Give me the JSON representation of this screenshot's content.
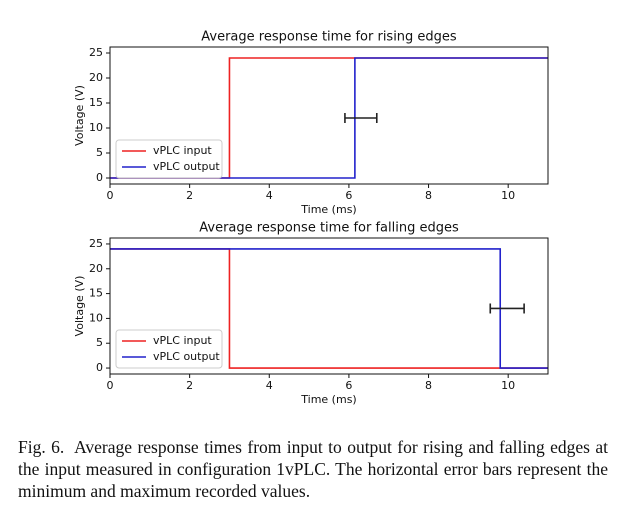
{
  "chart_data": [
    {
      "type": "line",
      "title": "Average response time for rising edges",
      "xlabel": "Time (ms)",
      "ylabel": "Voltage (V)",
      "xlim": [
        0,
        11
      ],
      "ylim": [
        -1.2,
        26.2
      ],
      "xticks": [
        0,
        2,
        4,
        6,
        8,
        10
      ],
      "yticks": [
        0,
        5,
        10,
        15,
        20,
        25
      ],
      "legend": "lower left",
      "series": [
        {
          "name": "vPLC input",
          "color": "#ee2222",
          "x": [
            0,
            3,
            3,
            11
          ],
          "values": [
            0,
            0,
            24,
            24
          ]
        },
        {
          "name": "vPLC output",
          "color": "#2222cc",
          "x": [
            0,
            6.15,
            6.15,
            11
          ],
          "values": [
            0,
            0,
            24,
            24
          ]
        }
      ],
      "errorbar": {
        "y": 12,
        "xmin": 5.9,
        "xmax": 6.7,
        "color": "#222222"
      }
    },
    {
      "type": "line",
      "title": "Average response time for falling edges",
      "xlabel": "Time (ms)",
      "ylabel": "Voltage (V)",
      "xlim": [
        0,
        11
      ],
      "ylim": [
        -1.2,
        26.2
      ],
      "xticks": [
        0,
        2,
        4,
        6,
        8,
        10
      ],
      "yticks": [
        0,
        5,
        10,
        15,
        20,
        25
      ],
      "legend": "lower left",
      "series": [
        {
          "name": "vPLC input",
          "color": "#ee2222",
          "x": [
            0,
            3,
            3,
            11
          ],
          "values": [
            24,
            24,
            0,
            0
          ]
        },
        {
          "name": "vPLC output",
          "color": "#2222cc",
          "x": [
            0,
            9.8,
            9.8,
            11
          ],
          "values": [
            24,
            24,
            0,
            0
          ]
        }
      ],
      "errorbar": {
        "y": 12,
        "xmin": 9.55,
        "xmax": 10.4,
        "color": "#222222"
      }
    }
  ],
  "caption": "Fig. 6.  Average response times from input to output for rising and falling edges at the input measured in configuration 1vPLC. The horizontal error bars represent the minimum and maximum recorded values."
}
